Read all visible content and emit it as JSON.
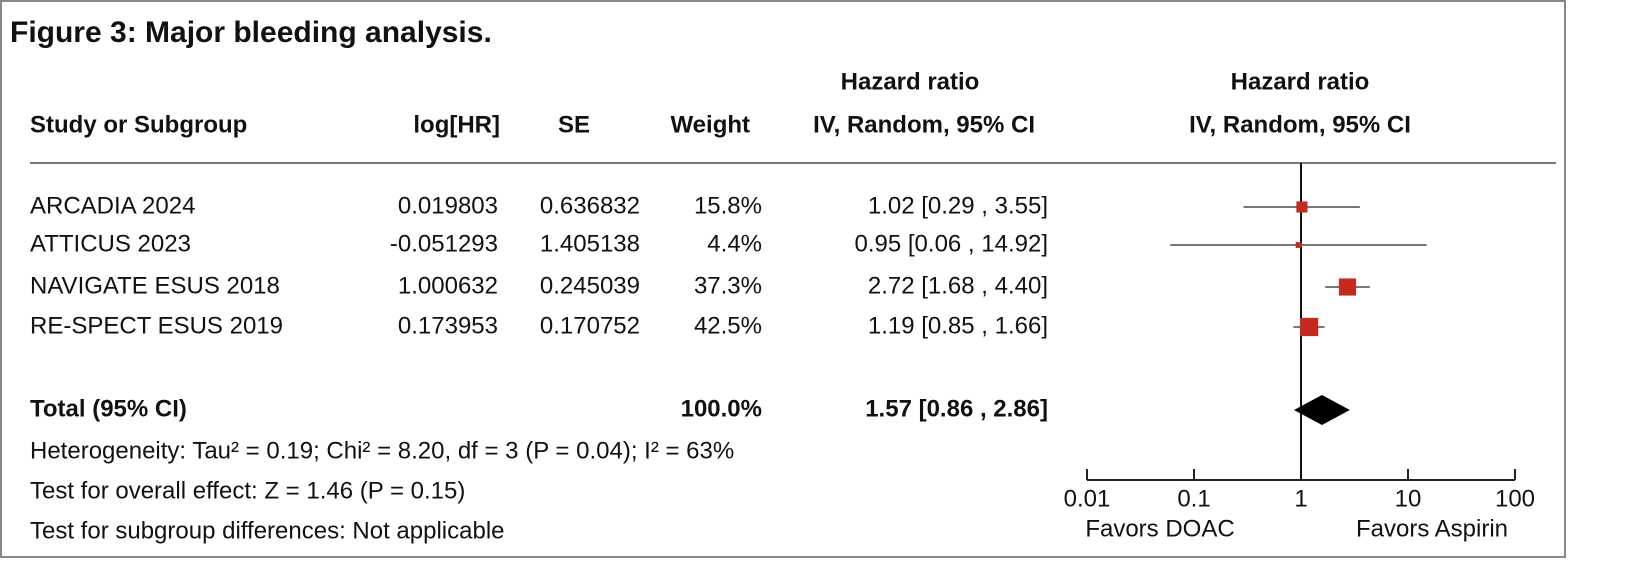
{
  "title": "Figure 3: Major bleeding analysis.",
  "table": {
    "group_header": "Hazard ratio",
    "columns": [
      "Study or Subgroup",
      "log[HR]",
      "SE",
      "Weight",
      "IV, Random, 95% CI"
    ],
    "rows": [
      [
        "ARCADIA 2024",
        "0.019803",
        "0.636832",
        "15.8%",
        "1.02 [0.29 , 3.55]"
      ],
      [
        "ATTICUS 2023",
        "-0.051293",
        "1.405138",
        "4.4%",
        "0.95 [0.06 , 14.92]"
      ],
      [
        "NAVIGATE ESUS 2018",
        "1.000632",
        "0.245039",
        "37.3%",
        "2.72 [1.68 , 4.40]"
      ],
      [
        "RE-SPECT ESUS 2019",
        "0.173953",
        "0.170752",
        "42.5%",
        "1.19 [0.85 , 1.66]"
      ]
    ],
    "total": {
      "label": "Total (95% CI)",
      "weight": "100.0%",
      "ci": "1.57 [0.86 , 2.86]"
    },
    "notes": [
      "Heterogeneity: Tau² = 0.19; Chi² = 8.20, df = 3 (P = 0.04); I² = 63%",
      "Test for overall effect: Z = 1.46 (P = 0.15)",
      "Test for subgroup differences: Not applicable"
    ]
  },
  "chart_data": {
    "type": "forest",
    "title": "Hazard ratio",
    "subtitle": "IV, Random, 95% CI",
    "log_scale": true,
    "xlim": [
      0.01,
      100
    ],
    "xticks": [
      0.01,
      0.1,
      1,
      10,
      100
    ],
    "left_label": "Favors DOAC",
    "right_label": "Favors Aspirin",
    "color": "#c42a1e",
    "estimates": [
      1.02,
      0.95,
      2.72,
      1.19
    ],
    "ci_lower": [
      0.29,
      0.06,
      1.68,
      0.85
    ],
    "ci_upper": [
      3.55,
      14.92,
      4.4,
      1.66
    ],
    "weights": [
      15.8,
      4.4,
      37.3,
      42.5
    ],
    "total": {
      "estimate": 1.57,
      "ci_lower": 0.86,
      "ci_upper": 2.86
    }
  }
}
